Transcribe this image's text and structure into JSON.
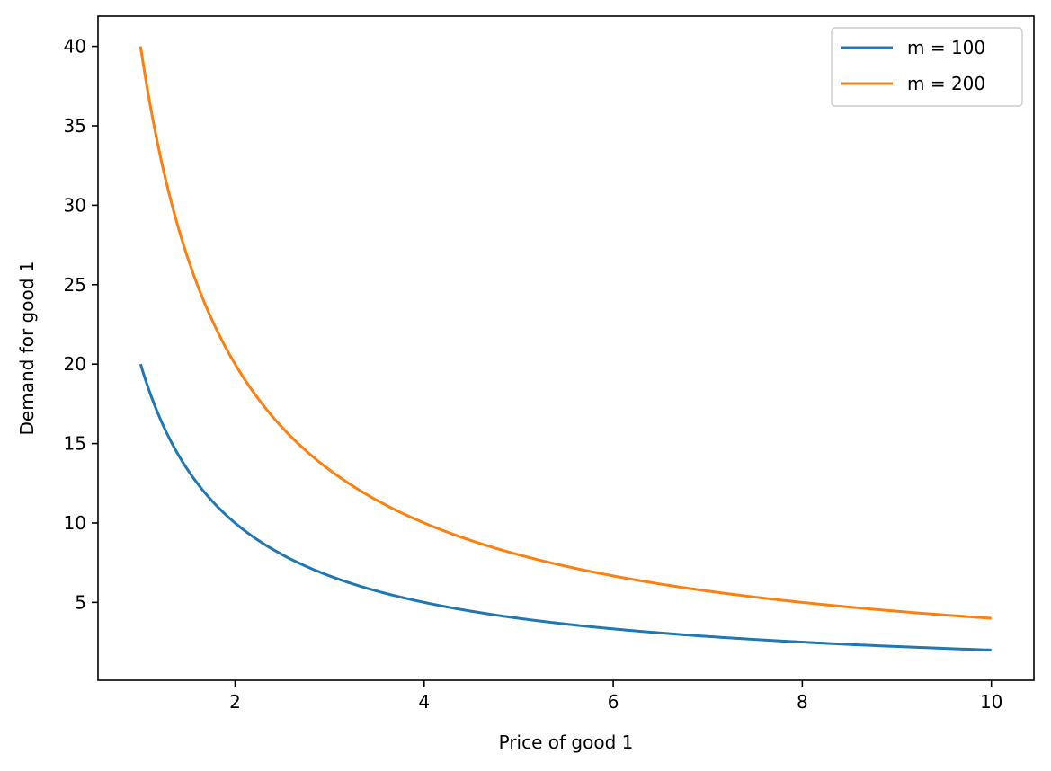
{
  "chart_data": {
    "type": "line",
    "title": "",
    "xlabel": "Price of good 1",
    "ylabel": "Demand for good 1",
    "xlim": [
      0.55,
      10.45
    ],
    "ylim": [
      0.1,
      41.9
    ],
    "x_ticks": [
      2,
      4,
      6,
      8,
      10
    ],
    "y_ticks": [
      5,
      10,
      15,
      20,
      25,
      30,
      35,
      40
    ],
    "x_tick_labels": [
      "2",
      "4",
      "6",
      "8",
      "10"
    ],
    "y_tick_labels": [
      "5",
      "10",
      "15",
      "20",
      "25",
      "30",
      "35",
      "40"
    ],
    "grid": false,
    "legend_position": "top-right",
    "series": [
      {
        "name": "m = 100",
        "color": "#1f77b4",
        "x": [
          1.0,
          1.25,
          1.5,
          1.75,
          2.0,
          2.5,
          3.0,
          3.5,
          4.0,
          4.5,
          5.0,
          5.5,
          6.0,
          6.5,
          7.0,
          7.5,
          8.0,
          8.5,
          9.0,
          9.5,
          10.0
        ],
        "y": [
          20.0,
          16.0,
          13.33,
          11.43,
          10.0,
          8.0,
          6.67,
          5.71,
          5.0,
          4.44,
          4.0,
          3.64,
          3.33,
          3.08,
          2.86,
          2.67,
          2.5,
          2.35,
          2.22,
          2.11,
          2.0
        ]
      },
      {
        "name": "m = 200",
        "color": "#ff7f0e",
        "x": [
          1.0,
          1.25,
          1.5,
          1.75,
          2.0,
          2.5,
          3.0,
          3.5,
          4.0,
          4.5,
          5.0,
          5.5,
          6.0,
          6.5,
          7.0,
          7.5,
          8.0,
          8.5,
          9.0,
          9.5,
          10.0
        ],
        "y": [
          40.0,
          32.0,
          26.67,
          22.86,
          20.0,
          16.0,
          13.33,
          11.43,
          10.0,
          8.89,
          8.0,
          7.27,
          6.67,
          6.15,
          5.71,
          5.33,
          5.0,
          4.71,
          4.44,
          4.21,
          4.0
        ]
      }
    ]
  }
}
